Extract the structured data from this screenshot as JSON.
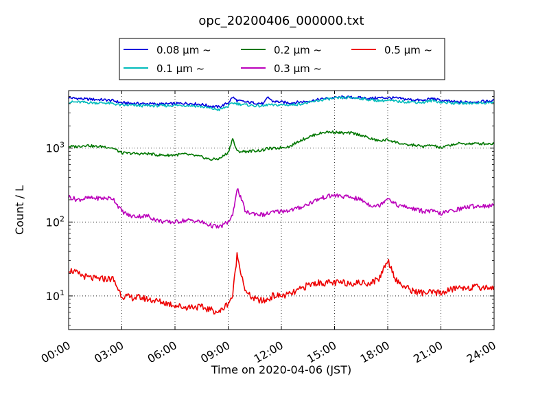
{
  "chart_data": {
    "type": "line",
    "title": "opc_20200406_000000.txt",
    "xlabel": "Time on 2020-04-06 (JST)",
    "ylabel": "Count / L",
    "x_unit": "hours",
    "xlim": [
      0,
      24
    ],
    "ylim": [
      3.5,
      6000
    ],
    "yscale": "log",
    "grid": true,
    "grid_style": "dotted",
    "legend_position": "top, above plot",
    "x_ticks": [
      {
        "value": 0,
        "label": "00:00"
      },
      {
        "value": 3,
        "label": "03:00"
      },
      {
        "value": 6,
        "label": "06:00"
      },
      {
        "value": 9,
        "label": "09:00"
      },
      {
        "value": 12,
        "label": "12:00"
      },
      {
        "value": 15,
        "label": "15:00"
      },
      {
        "value": 18,
        "label": "18:00"
      },
      {
        "value": 21,
        "label": "21:00"
      },
      {
        "value": 24,
        "label": "24:00"
      }
    ],
    "y_ticks": [
      {
        "value": 10,
        "base": "10",
        "exp": "1"
      },
      {
        "value": 100,
        "base": "10",
        "exp": "2"
      },
      {
        "value": 1000,
        "base": "10",
        "exp": "3"
      }
    ],
    "x": [
      0,
      0.5,
      1,
      1.5,
      2,
      2.5,
      3,
      3.5,
      4,
      4.5,
      5,
      5.5,
      6,
      6.5,
      7,
      7.5,
      8,
      8.5,
      9,
      9.25,
      9.5,
      10,
      10.5,
      11,
      11.25,
      11.5,
      12,
      12.5,
      13,
      13.5,
      14,
      14.5,
      15,
      15.5,
      16,
      16.5,
      17,
      17.5,
      18,
      18.5,
      19,
      19.5,
      20,
      20.5,
      21,
      21.5,
      22,
      22.5,
      23,
      23.5,
      24
    ],
    "series": [
      {
        "name": "0.08 μm ~",
        "color": "#0000dd",
        "values": [
          4800,
          4700,
          4600,
          4550,
          4500,
          4400,
          4100,
          4050,
          4000,
          4000,
          3950,
          3950,
          4000,
          4050,
          4000,
          3900,
          3700,
          3600,
          4100,
          4900,
          4400,
          4200,
          4100,
          4000,
          4900,
          4300,
          4200,
          4100,
          4200,
          4300,
          4500,
          4700,
          4800,
          4900,
          4850,
          4800,
          4700,
          4800,
          4800,
          4750,
          4600,
          4500,
          4400,
          4700,
          4400,
          4300,
          4200,
          4200,
          4250,
          4300,
          4400
        ]
      },
      {
        "name": "0.1 μm ~",
        "color": "#00bbbb",
        "values": [
          4200,
          4200,
          4150,
          4100,
          4100,
          4000,
          3800,
          3800,
          3750,
          3750,
          3750,
          3750,
          3800,
          3800,
          3750,
          3650,
          3450,
          3300,
          3700,
          4100,
          4000,
          3850,
          3750,
          3700,
          3900,
          3800,
          3850,
          3850,
          3950,
          4100,
          4350,
          4600,
          4700,
          4800,
          4800,
          4700,
          4500,
          4400,
          4400,
          4300,
          4250,
          4200,
          4150,
          4400,
          4200,
          4100,
          4050,
          4050,
          4100,
          4100,
          4150
        ]
      },
      {
        "name": "0.2 μm ~",
        "color": "#007700",
        "values": [
          1050,
          1050,
          1100,
          1050,
          1050,
          1000,
          860,
          850,
          840,
          840,
          810,
          800,
          810,
          830,
          800,
          760,
          700,
          720,
          870,
          1350,
          900,
          900,
          920,
          940,
          1000,
          980,
          1020,
          1060,
          1250,
          1400,
          1550,
          1650,
          1650,
          1600,
          1600,
          1500,
          1350,
          1250,
          1300,
          1200,
          1100,
          1100,
          1050,
          1100,
          1000,
          1100,
          1150,
          1150,
          1150,
          1150,
          1150
        ]
      },
      {
        "name": "0.3 μm ~",
        "color": "#bb00bb",
        "values": [
          220,
          200,
          210,
          210,
          210,
          210,
          140,
          120,
          120,
          120,
          105,
          100,
          100,
          105,
          105,
          100,
          90,
          85,
          100,
          120,
          290,
          135,
          130,
          125,
          130,
          135,
          140,
          145,
          155,
          175,
          200,
          220,
          230,
          220,
          215,
          200,
          170,
          165,
          215,
          170,
          160,
          150,
          140,
          140,
          130,
          140,
          150,
          160,
          165,
          165,
          165
        ]
      },
      {
        "name": "0.5 μm ~",
        "color": "#ee0000",
        "values": [
          23,
          20,
          18,
          17,
          17,
          17,
          10,
          9.5,
          9.5,
          9,
          8.5,
          8,
          7.5,
          7,
          7.2,
          7,
          6.5,
          6,
          8,
          10,
          36,
          11,
          9,
          8.5,
          9,
          10,
          10,
          10.5,
          12,
          14,
          15,
          15,
          15,
          15,
          15,
          15,
          15,
          17,
          31,
          16,
          13,
          11.5,
          11,
          11,
          11,
          12,
          13,
          13,
          13,
          13,
          13
        ]
      }
    ]
  }
}
